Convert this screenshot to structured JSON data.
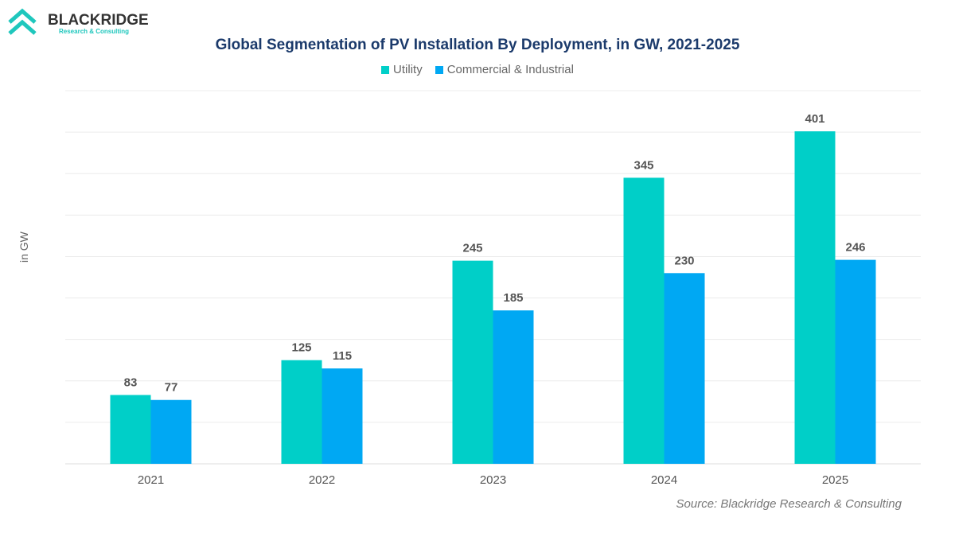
{
  "logo": {
    "name": "BLACKRIDGE",
    "tagline": "Research & Consulting"
  },
  "colors": {
    "utility": "#00CFC8",
    "commercial": "#00A8F3",
    "title": "#1b3a6b"
  },
  "chart_data": {
    "type": "bar",
    "title": "Global Segmentation of PV Installation By Deployment, in GW, 2021-2025",
    "ylabel": "in GW",
    "xlabel": "",
    "categories": [
      "2021",
      "2022",
      "2023",
      "2024",
      "2025"
    ],
    "series": [
      {
        "name": "Utility",
        "values": [
          83,
          125,
          245,
          345,
          401
        ]
      },
      {
        "name": "Commercial & Industrial",
        "values": [
          77,
          115,
          185,
          230,
          246
        ]
      }
    ],
    "ylim": [
      0,
      450
    ],
    "grid": true,
    "gridline_step": 50,
    "legend": "top",
    "source": "Source: Blackridge Research & Consulting"
  }
}
